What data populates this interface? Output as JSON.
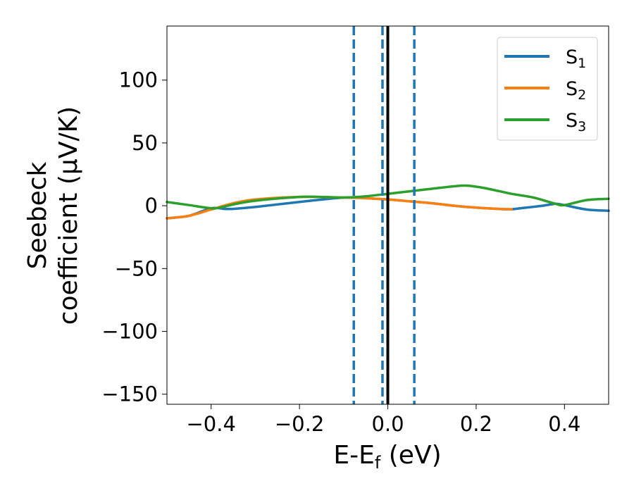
{
  "chart_data": {
    "type": "line",
    "xlabel": {
      "main": "E-E",
      "sub": "f",
      "tail": " (eV)"
    },
    "ylabel": {
      "line1": "Seebeck",
      "line2": "coefficient  (μV/K)"
    },
    "xlim": [
      -0.5,
      0.5
    ],
    "ylim": [
      -158,
      143
    ],
    "xticks": [
      -0.4,
      -0.2,
      0.0,
      0.2,
      0.4
    ],
    "xtick_labels": [
      "−0.4",
      "−0.2",
      "0.0",
      "0.2",
      "0.4"
    ],
    "yticks": [
      -150,
      -100,
      -50,
      0,
      50,
      100
    ],
    "ytick_labels": [
      "−150",
      "−100",
      "−50",
      "0",
      "50",
      "100"
    ],
    "grid": false,
    "legend_position": "top-right",
    "series": [
      {
        "name": "S",
        "sub": "1",
        "color": "#1f77b4",
        "x": [
          -0.5,
          -0.45,
          -0.4,
          -0.37,
          -0.35,
          -0.3,
          -0.2,
          -0.1,
          -0.05,
          0.0,
          0.05,
          0.1,
          0.15,
          0.2,
          0.25,
          0.28,
          0.3,
          0.35,
          0.38,
          0.4,
          0.45,
          0.5
        ],
        "y": [
          -10,
          -8,
          -2,
          -2.5,
          -2.5,
          -1,
          3,
          6.5,
          6,
          5,
          3.5,
          2,
          0,
          -1.5,
          -2.5,
          -2.8,
          -2,
          0,
          1.5,
          0.5,
          -3,
          -4
        ]
      },
      {
        "name": "S",
        "sub": "2",
        "color": "#ff7f0e",
        "x": [
          -0.5,
          -0.45,
          -0.4,
          -0.35,
          -0.3,
          -0.2,
          -0.1,
          -0.05,
          0.0,
          0.05,
          0.1,
          0.15,
          0.2,
          0.25,
          0.28
        ],
        "y": [
          -10,
          -8,
          -3,
          2,
          5,
          7,
          6.5,
          6,
          5,
          3.5,
          2,
          0,
          -1.5,
          -2.5,
          -2.8
        ]
      },
      {
        "name": "S",
        "sub": "3",
        "color": "#2ca02c",
        "x": [
          -0.5,
          -0.45,
          -0.4,
          -0.38,
          -0.35,
          -0.3,
          -0.2,
          -0.15,
          -0.1,
          -0.05,
          0.0,
          0.05,
          0.1,
          0.15,
          0.18,
          0.22,
          0.28,
          0.33,
          0.38,
          0.4,
          0.45,
          0.5
        ],
        "y": [
          3,
          0.5,
          -2,
          -1.5,
          1,
          4,
          7,
          7,
          6.5,
          7.5,
          9.5,
          11.5,
          13.5,
          15.5,
          16,
          14,
          9.5,
          6.5,
          1.5,
          0.5,
          4.5,
          5.5
        ]
      }
    ],
    "vlines": [
      {
        "x": -0.077,
        "style": "dashed",
        "color": "#1f77b4"
      },
      {
        "x": -0.012,
        "style": "dashed",
        "color": "#1f77b4"
      },
      {
        "x": 0.0,
        "style": "solid",
        "color": "#000000"
      },
      {
        "x": 0.06,
        "style": "dashed",
        "color": "#1f77b4"
      }
    ]
  }
}
